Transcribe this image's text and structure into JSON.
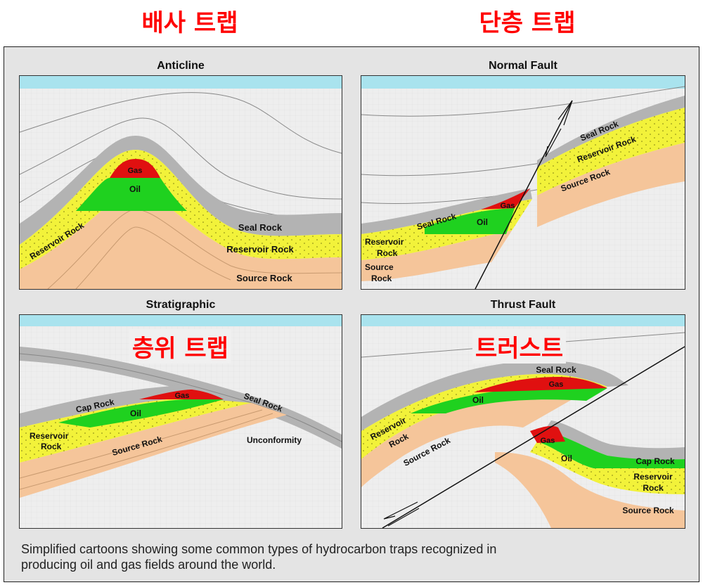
{
  "header": {
    "left_title": "배사 트랩",
    "right_title": "단층 트랩"
  },
  "overlays": {
    "stratigraphic_kr": "층위 트랩",
    "thrust_kr": "트러스트"
  },
  "panels": {
    "anticline": {
      "title": "Anticline",
      "gas": "Gas",
      "oil": "Oil",
      "seal": "Seal Rock",
      "reservoir": "Reservoir Rock",
      "reservoir_left": "Reservoir Rock",
      "source": "Source Rock"
    },
    "normal_fault": {
      "title": "Normal Fault",
      "seal_right": "Seal Rock",
      "reservoir_right": "Reservoir Rock",
      "source_right": "Source Rock",
      "seal_left": "Seal Rock",
      "gas": "Gas",
      "oil": "Oil",
      "reservoir_left_1": "Reservoir",
      "reservoir_left_2": "Rock",
      "source_left_1": "Source",
      "source_left_2": "Rock"
    },
    "stratigraphic": {
      "title": "Stratigraphic",
      "cap": "Cap Rock",
      "gas": "Gas",
      "oil": "Oil",
      "seal": "Seal Rock",
      "reservoir_1": "Reservoir",
      "reservoir_2": "Rock",
      "source": "Source Rock",
      "unconformity": "Unconformity"
    },
    "thrust_fault": {
      "title": "Thrust Fault",
      "seal": "Seal Rock",
      "gas_upper": "Gas",
      "oil_upper": "Oil",
      "reservoir_left_1": "Reservoir",
      "reservoir_left_2": "Rock",
      "source_left": "Source Rock",
      "gas_lower": "Gas",
      "oil_lower": "Oil",
      "cap": "Cap Rock",
      "reservoir_right_1": "Reservoir",
      "reservoir_right_2": "Rock",
      "source_right": "Source Rock"
    }
  },
  "caption": {
    "line1": "Simplified cartoons showing some common types of hydrocarbon traps recognized in",
    "line2": "producing oil and gas fields around the world."
  },
  "colors": {
    "sea": "#a9e3ee",
    "sky": "#eeeeee",
    "seal": "#b3b3b3",
    "reservoir": "#f2f23a",
    "source": "#f5c59a",
    "gas": "#e01010",
    "oil": "#1fd11f"
  }
}
